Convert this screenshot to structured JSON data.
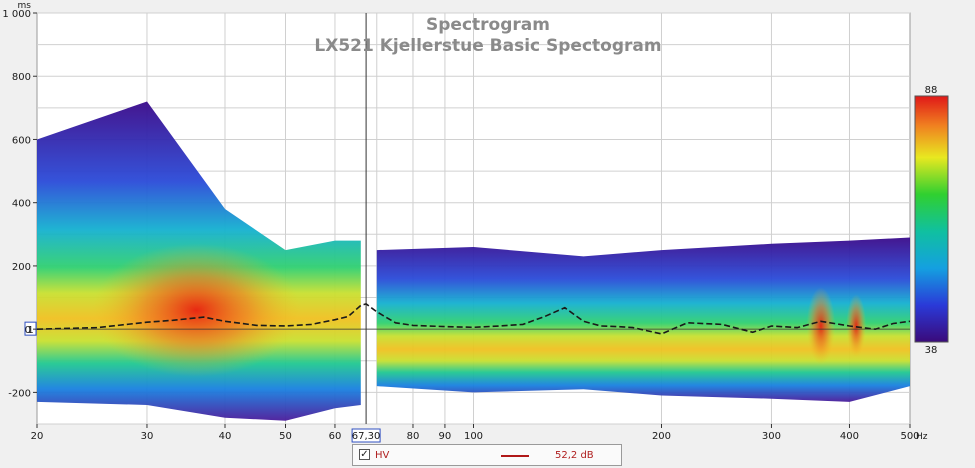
{
  "chart_data": {
    "type": "heatmap",
    "title": "Spectrogram",
    "subtitle": "LX521 Kjellerstue Basic Spectogram",
    "x_unit": "Hz",
    "y_unit": "ms",
    "x_scale": "log",
    "xlim": [
      20,
      500
    ],
    "ylim": [
      -300,
      1000
    ],
    "x_ticks": [
      20,
      30,
      40,
      50,
      60,
      80,
      90,
      100,
      200,
      300,
      400,
      500
    ],
    "y_ticks": [
      1000,
      800,
      600,
      400,
      200,
      0,
      -200
    ],
    "grid": true,
    "colorbar": {
      "max_label": "88",
      "min_label": "38",
      "max": 88,
      "min": 38
    },
    "cursor": {
      "x_label": "67,30",
      "x_value": 67.3,
      "y_label": "1"
    },
    "series": [
      {
        "name": "HV",
        "value_label": "52,2 dB",
        "style": "dashed",
        "x": [
          20,
          25,
          30,
          33,
          37,
          40,
          45,
          50,
          55,
          60,
          63,
          66,
          67.3,
          70,
          75,
          80,
          90,
          100,
          110,
          120,
          130,
          140,
          150,
          160,
          170,
          180,
          200,
          220,
          250,
          280,
          300,
          330,
          360,
          400,
          440,
          470,
          500
        ],
        "values": [
          0,
          5,
          22,
          28,
          38,
          25,
          12,
          10,
          15,
          30,
          40,
          75,
          80,
          55,
          20,
          12,
          8,
          6,
          10,
          15,
          40,
          68,
          25,
          10,
          8,
          5,
          -15,
          20,
          15,
          -10,
          10,
          5,
          25,
          10,
          0,
          18,
          25
        ]
      }
    ],
    "heat_bands": [
      {
        "x": [
          20,
          30,
          40,
          50,
          60,
          66
        ],
        "upper": [
          600,
          720,
          380,
          250,
          280,
          280
        ],
        "lower": [
          -230,
          -240,
          -280,
          -290,
          -250,
          -240
        ],
        "core": [
          55,
          75,
          85,
          70,
          60,
          55
        ]
      },
      {
        "x": [
          70,
          100,
          150,
          200,
          300,
          400,
          500
        ],
        "upper": [
          250,
          260,
          230,
          250,
          270,
          280,
          290
        ],
        "lower": [
          -180,
          -200,
          -190,
          -210,
          -220,
          -230,
          -180
        ],
        "core": [
          55,
          58,
          60,
          65,
          70,
          80,
          75
        ]
      }
    ]
  },
  "legend": {
    "checkbox": "✓",
    "name": "HV",
    "value": "52,2 dB"
  }
}
